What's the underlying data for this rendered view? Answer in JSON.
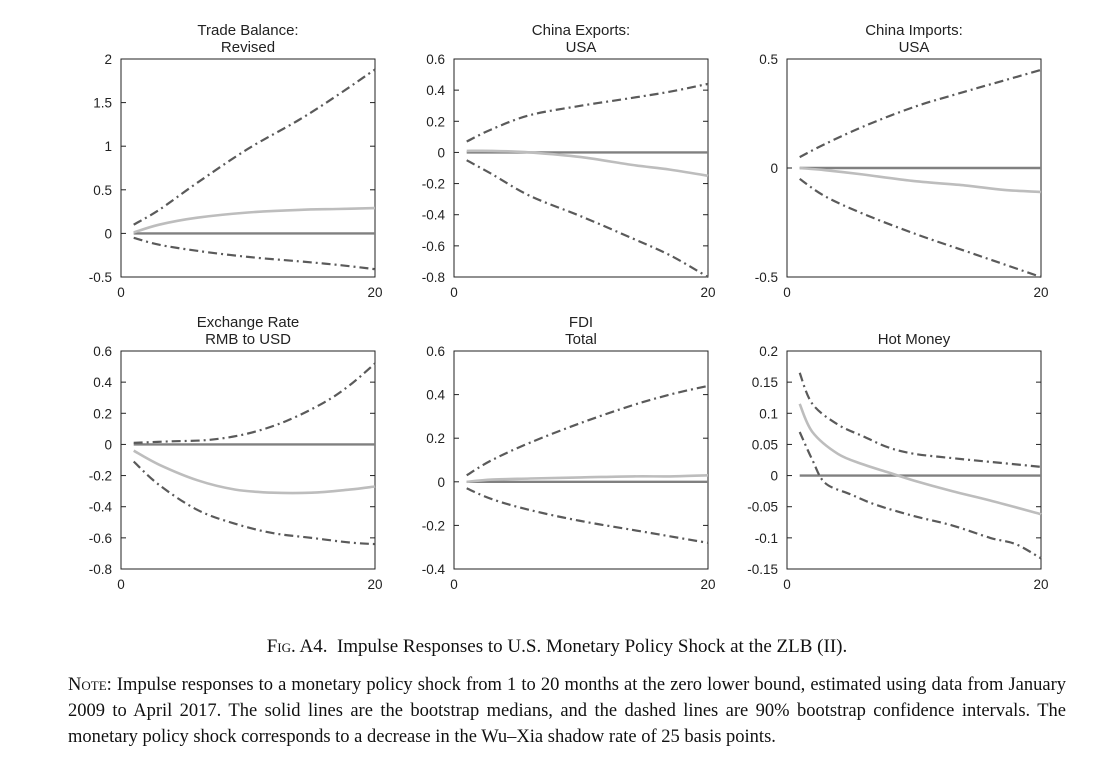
{
  "chart_data": [
    {
      "type": "line",
      "title": [
        "Trade Balance:",
        "Revised"
      ],
      "x": [
        1,
        20
      ],
      "xlim": [
        0,
        20
      ],
      "xticks": [
        0,
        20
      ],
      "ylim": [
        -0.5,
        2
      ],
      "yticks": [
        "-0.5",
        "0",
        "0.5",
        "1",
        "1.5",
        "2"
      ],
      "series": [
        {
          "role": "zero",
          "points": [
            [
              1,
              0
            ],
            [
              20,
              0
            ]
          ]
        },
        {
          "role": "upper",
          "points": [
            [
              1,
              0.1
            ],
            [
              3,
              0.27
            ],
            [
              6,
              0.58
            ],
            [
              10,
              0.97
            ],
            [
              14,
              1.3
            ],
            [
              17,
              1.58
            ],
            [
              20,
              1.88
            ]
          ]
        },
        {
          "role": "median",
          "points": [
            [
              1,
              0.01
            ],
            [
              3,
              0.1
            ],
            [
              6,
              0.18
            ],
            [
              10,
              0.24
            ],
            [
              14,
              0.27
            ],
            [
              17,
              0.28
            ],
            [
              20,
              0.29
            ]
          ]
        },
        {
          "role": "lower",
          "points": [
            [
              1,
              -0.05
            ],
            [
              3,
              -0.13
            ],
            [
              6,
              -0.2
            ],
            [
              10,
              -0.27
            ],
            [
              14,
              -0.32
            ],
            [
              17,
              -0.36
            ],
            [
              20,
              -0.41
            ]
          ]
        }
      ]
    },
    {
      "type": "line",
      "title": [
        "China Exports:",
        "USA"
      ],
      "x": [
        1,
        20
      ],
      "xlim": [
        0,
        20
      ],
      "xticks": [
        0,
        20
      ],
      "ylim": [
        -0.8,
        0.6
      ],
      "yticks": [
        "-0.8",
        "-0.6",
        "-0.4",
        "-0.2",
        "0",
        "0.2",
        "0.4",
        "0.6"
      ],
      "series": [
        {
          "role": "zero",
          "points": [
            [
              1,
              0
            ],
            [
              20,
              0
            ]
          ]
        },
        {
          "role": "upper",
          "points": [
            [
              1,
              0.07
            ],
            [
              3,
              0.15
            ],
            [
              6,
              0.24
            ],
            [
              10,
              0.3
            ],
            [
              14,
              0.35
            ],
            [
              17,
              0.39
            ],
            [
              20,
              0.44
            ]
          ]
        },
        {
          "role": "median",
          "points": [
            [
              1,
              0.01
            ],
            [
              3,
              0.01
            ],
            [
              6,
              0.0
            ],
            [
              10,
              -0.03
            ],
            [
              14,
              -0.08
            ],
            [
              17,
              -0.11
            ],
            [
              20,
              -0.15
            ]
          ]
        },
        {
          "role": "lower",
          "points": [
            [
              1,
              -0.05
            ],
            [
              3,
              -0.14
            ],
            [
              6,
              -0.28
            ],
            [
              10,
              -0.41
            ],
            [
              14,
              -0.55
            ],
            [
              17,
              -0.66
            ],
            [
              20,
              -0.8
            ]
          ]
        }
      ]
    },
    {
      "type": "line",
      "title": [
        "China Imports:",
        "USA"
      ],
      "x": [
        1,
        20
      ],
      "xlim": [
        0,
        20
      ],
      "xticks": [
        0,
        20
      ],
      "ylim": [
        -0.5,
        0.5
      ],
      "yticks": [
        "-0.5",
        "0",
        "0.5"
      ],
      "series": [
        {
          "role": "zero",
          "points": [
            [
              1,
              0
            ],
            [
              20,
              0
            ]
          ]
        },
        {
          "role": "upper",
          "points": [
            [
              1,
              0.05
            ],
            [
              3,
              0.11
            ],
            [
              6,
              0.19
            ],
            [
              10,
              0.28
            ],
            [
              14,
              0.35
            ],
            [
              17,
              0.4
            ],
            [
              20,
              0.45
            ]
          ]
        },
        {
          "role": "median",
          "points": [
            [
              1,
              0.0
            ],
            [
              3,
              -0.01
            ],
            [
              6,
              -0.03
            ],
            [
              10,
              -0.06
            ],
            [
              14,
              -0.08
            ],
            [
              17,
              -0.1
            ],
            [
              20,
              -0.11
            ]
          ]
        },
        {
          "role": "lower",
          "points": [
            [
              1,
              -0.05
            ],
            [
              3,
              -0.13
            ],
            [
              6,
              -0.21
            ],
            [
              10,
              -0.3
            ],
            [
              14,
              -0.38
            ],
            [
              17,
              -0.44
            ],
            [
              20,
              -0.5
            ]
          ]
        }
      ]
    },
    {
      "type": "line",
      "title": [
        "Exchange Rate",
        "RMB to USD"
      ],
      "x": [
        1,
        20
      ],
      "xlim": [
        0,
        20
      ],
      "xticks": [
        0,
        20
      ],
      "ylim": [
        -0.8,
        0.6
      ],
      "yticks": [
        "-0.8",
        "-0.6",
        "-0.4",
        "-0.2",
        "0",
        "0.2",
        "0.4",
        "0.6"
      ],
      "series": [
        {
          "role": "zero",
          "points": [
            [
              1,
              0
            ],
            [
              20,
              0
            ]
          ]
        },
        {
          "role": "upper",
          "points": [
            [
              1,
              0.01
            ],
            [
              4,
              0.02
            ],
            [
              7,
              0.03
            ],
            [
              10,
              0.07
            ],
            [
              13,
              0.15
            ],
            [
              16,
              0.27
            ],
            [
              18,
              0.38
            ],
            [
              20,
              0.52
            ]
          ]
        },
        {
          "role": "median",
          "points": [
            [
              1,
              -0.04
            ],
            [
              3,
              -0.13
            ],
            [
              6,
              -0.23
            ],
            [
              9,
              -0.29
            ],
            [
              12,
              -0.31
            ],
            [
              15,
              -0.31
            ],
            [
              18,
              -0.29
            ],
            [
              20,
              -0.27
            ]
          ]
        },
        {
          "role": "lower",
          "points": [
            [
              1,
              -0.11
            ],
            [
              3,
              -0.26
            ],
            [
              6,
              -0.42
            ],
            [
              9,
              -0.51
            ],
            [
              12,
              -0.57
            ],
            [
              15,
              -0.6
            ],
            [
              18,
              -0.63
            ],
            [
              20,
              -0.64
            ]
          ]
        }
      ]
    },
    {
      "type": "line",
      "title": [
        "FDI",
        "Total"
      ],
      "x": [
        1,
        20
      ],
      "xlim": [
        0,
        20
      ],
      "xticks": [
        0,
        20
      ],
      "ylim": [
        -0.4,
        0.6
      ],
      "yticks": [
        "-0.4",
        "-0.2",
        "0",
        "0.2",
        "0.4",
        "0.6"
      ],
      "series": [
        {
          "role": "zero",
          "points": [
            [
              1,
              0
            ],
            [
              20,
              0
            ]
          ]
        },
        {
          "role": "upper",
          "points": [
            [
              1,
              0.03
            ],
            [
              3,
              0.1
            ],
            [
              6,
              0.18
            ],
            [
              10,
              0.27
            ],
            [
              14,
              0.35
            ],
            [
              17,
              0.4
            ],
            [
              20,
              0.44
            ]
          ]
        },
        {
          "role": "median",
          "points": [
            [
              1,
              0.0
            ],
            [
              3,
              0.01
            ],
            [
              6,
              0.015
            ],
            [
              10,
              0.02
            ],
            [
              14,
              0.025
            ],
            [
              17,
              0.025
            ],
            [
              20,
              0.03
            ]
          ]
        },
        {
          "role": "lower",
          "points": [
            [
              1,
              -0.03
            ],
            [
              3,
              -0.08
            ],
            [
              6,
              -0.13
            ],
            [
              10,
              -0.18
            ],
            [
              14,
              -0.22
            ],
            [
              17,
              -0.25
            ],
            [
              20,
              -0.28
            ]
          ]
        }
      ]
    },
    {
      "type": "line",
      "title": [
        "",
        "Hot Money"
      ],
      "x": [
        1,
        20
      ],
      "xlim": [
        0,
        20
      ],
      "xticks": [
        0,
        20
      ],
      "ylim": [
        -0.15,
        0.2
      ],
      "yticks": [
        "-0.15",
        "-0.1",
        "-0.05",
        "0",
        "0.05",
        "0.1",
        "0.15",
        "0.2"
      ],
      "series": [
        {
          "role": "zero",
          "points": [
            [
              1,
              0
            ],
            [
              20,
              0
            ]
          ]
        },
        {
          "role": "upper",
          "points": [
            [
              1,
              0.165
            ],
            [
              2,
              0.115
            ],
            [
              4,
              0.082
            ],
            [
              6,
              0.063
            ],
            [
              8,
              0.045
            ],
            [
              10,
              0.035
            ],
            [
              13,
              0.028
            ],
            [
              16,
              0.022
            ],
            [
              20,
              0.014
            ]
          ]
        },
        {
          "role": "median",
          "points": [
            [
              1,
              0.115
            ],
            [
              2,
              0.07
            ],
            [
              4,
              0.035
            ],
            [
              6,
              0.018
            ],
            [
              8,
              0.005
            ],
            [
              10,
              -0.008
            ],
            [
              13,
              -0.025
            ],
            [
              16,
              -0.04
            ],
            [
              20,
              -0.062
            ]
          ]
        },
        {
          "role": "lower",
          "points": [
            [
              1,
              0.07
            ],
            [
              2,
              0.025
            ],
            [
              3,
              -0.012
            ],
            [
              5,
              -0.03
            ],
            [
              7,
              -0.047
            ],
            [
              10,
              -0.065
            ],
            [
              13,
              -0.08
            ],
            [
              16,
              -0.1
            ],
            [
              18,
              -0.11
            ],
            [
              20,
              -0.133
            ]
          ]
        }
      ]
    }
  ],
  "caption": {
    "label": "Fig. A4.",
    "text": "Impulse Responses to U.S. Monetary Policy Shock at the ZLB (II)."
  },
  "note": {
    "label": "Note:",
    "text": "Impulse responses to a monetary policy shock from 1 to 20 months at the zero lower bound, estimated using data from January 2009 to April 2017. The solid lines are the bootstrap medians, and the dashed lines are 90% bootstrap confidence intervals. The monetary policy shock corresponds to a decrease in the Wu–Xia shadow rate of 25 basis points."
  },
  "colors": {
    "zero_line": "#808080",
    "median_line": "#bdbdbd",
    "band_line": "#5a5a5a",
    "axis": "#222222"
  }
}
